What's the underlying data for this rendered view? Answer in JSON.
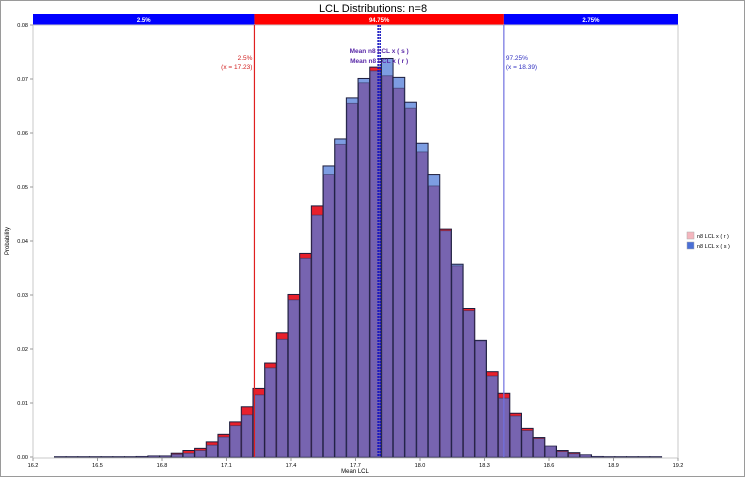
{
  "chart_data": {
    "type": "bar",
    "title": "LCL Distributions: n=8",
    "xlabel": "Mean LCL",
    "ylabel": "Probability",
    "xlim": [
      16.2,
      19.2
    ],
    "ylim": [
      0,
      0.08
    ],
    "x_ticks": [
      "16.2",
      "16.5",
      "16.8",
      "17.1",
      "17.4",
      "17.7",
      "18.0",
      "18.3",
      "18.6",
      "18.9",
      "19.2"
    ],
    "y_ticks": [
      "0.00",
      "0.01",
      "0.02",
      "0.03",
      "0.04",
      "0.05",
      "0.06",
      "0.07",
      "0.08"
    ],
    "bin_start": 16.3,
    "bin_width": 0.0543,
    "series": [
      {
        "name": "n8 LCL x ( r )",
        "color": "#e8202c",
        "legend_color": "#f4b6be",
        "values": [
          5e-05,
          5e-05,
          5e-05,
          5e-05,
          5e-05,
          5e-05,
          5e-05,
          0.0001,
          0.0002,
          0.0002,
          0.0007,
          0.0012,
          0.0016,
          0.0028,
          0.0042,
          0.0065,
          0.0093,
          0.0127,
          0.0174,
          0.023,
          0.0301,
          0.0377,
          0.0465,
          0.0523,
          0.0579,
          0.0655,
          0.0693,
          0.0722,
          0.0706,
          0.0683,
          0.0646,
          0.0565,
          0.0502,
          0.0422,
          0.0354,
          0.0275,
          0.0215,
          0.0158,
          0.0118,
          0.0081,
          0.0053,
          0.0036,
          0.002,
          0.0012,
          0.0008,
          0.0004,
          0.0001,
          5e-05,
          5e-05,
          5e-05,
          5e-05,
          5e-05
        ]
      },
      {
        "name": "n8 LCL x ( s )",
        "color": "#7d9de2",
        "legend_color": "#4a6fd6",
        "values": [
          5e-05,
          5e-05,
          5e-05,
          5e-05,
          5e-05,
          5e-05,
          5e-05,
          0.0001,
          0.0002,
          0.0002,
          0.0005,
          0.0007,
          0.0012,
          0.0022,
          0.0037,
          0.0058,
          0.0078,
          0.0115,
          0.0165,
          0.0218,
          0.0291,
          0.0368,
          0.0448,
          0.0539,
          0.0589,
          0.0665,
          0.0701,
          0.0715,
          0.0738,
          0.0703,
          0.0657,
          0.0581,
          0.0523,
          0.0419,
          0.0357,
          0.0271,
          0.0216,
          0.015,
          0.0109,
          0.0076,
          0.0049,
          0.0034,
          0.002,
          0.001,
          0.0006,
          0.0004,
          0.0001,
          5e-05,
          5e-05,
          5e-05,
          5e-05,
          5e-05
        ]
      }
    ],
    "overlap_color": "#7764b0",
    "percent_bands": [
      {
        "label": "2.5%",
        "from": 16.2,
        "to": 17.23,
        "color": "#0000ff"
      },
      {
        "label": "94.75%",
        "from": 17.23,
        "to": 18.39,
        "color": "#ff0000"
      },
      {
        "label": "2.75%",
        "from": 18.39,
        "to": 19.2,
        "color": "#0000ff"
      }
    ],
    "reference_lines": [
      {
        "x": 17.23,
        "color": "#e02020",
        "label_pct": "2.5%",
        "label_x": "(x = 17.23)"
      },
      {
        "x": 18.39,
        "color": "#7070e0",
        "label_pct": "97.25%",
        "label_x": "(x = 18.39)"
      }
    ],
    "mean_lines": {
      "x": 17.81,
      "color": "#1010c0",
      "labels": [
        "Mean n8 LCL x ( s )",
        "Mean n8 LCL x ( r )"
      ]
    },
    "legend_placement": "right"
  }
}
